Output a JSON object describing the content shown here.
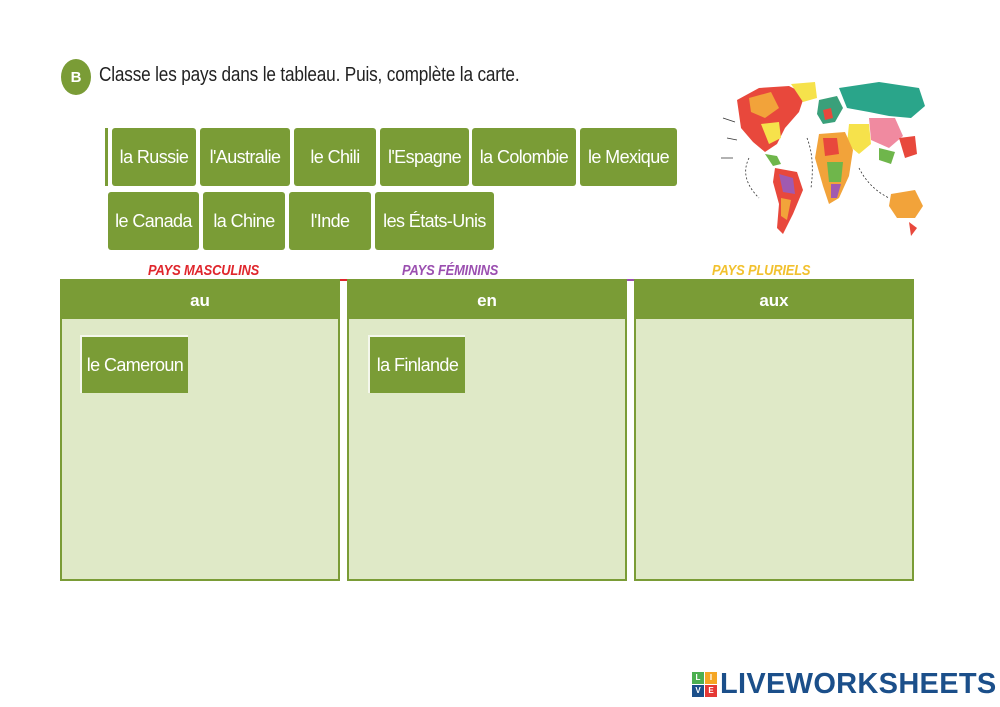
{
  "exercise": {
    "badge": "B",
    "instruction": "Classe les pays dans le tableau. Puis, complète la carte."
  },
  "word_bank": {
    "chips": [
      "la Russie",
      "l'Australie",
      "le Chili",
      "l'Espagne",
      "la Colombie",
      "le Mexique",
      "le Canada",
      "la Chine",
      "l'Inde",
      "les États-Unis"
    ]
  },
  "categories": {
    "masculine": {
      "label": "PAYS MASCULINS",
      "header": "au",
      "color": "#e0262c",
      "items": [
        "le Cameroun"
      ]
    },
    "feminine": {
      "label": "PAYS FÉMININS",
      "header": "en",
      "color": "#9b4fb0",
      "items": [
        "la Finlande"
      ]
    },
    "plural": {
      "label": "PAYS PLURIELS",
      "header": "aux",
      "color": "#f2c12e",
      "items": []
    }
  },
  "map": {
    "icon": "world-map-image"
  },
  "brand": {
    "text": "LIVEWORKSHEETS",
    "logo_letters": [
      "L",
      "I",
      "V",
      "E"
    ],
    "logo_colors": [
      "#4caf50",
      "#f5a623",
      "#1b4f8a",
      "#e53935"
    ]
  }
}
